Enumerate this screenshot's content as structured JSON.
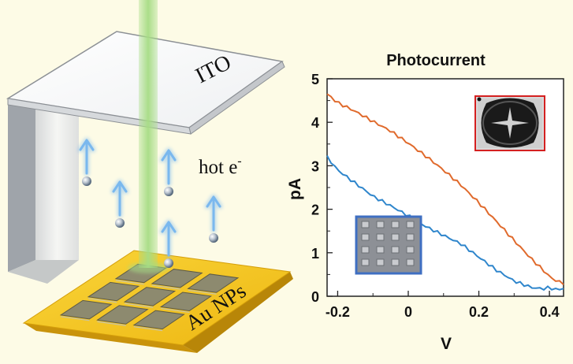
{
  "colors": {
    "background": "#fdfbe6",
    "gold": "#f3c21a",
    "laser": "#a6dc84",
    "electron_arrow": "#7ab8ee",
    "series_top": "#e06a2c",
    "series_bottom": "#2f86cc",
    "inset_top_border": "#d42020",
    "inset_bottom_border": "#3f6fc2"
  },
  "icons": {
    "electron": "sphere-glyph",
    "electron_arrow": "up-arrow-glyph"
  },
  "schematic": {
    "top_electrode_label": "ITO",
    "carrier_label": "hot e",
    "carrier_superscript": "-",
    "substrate_label": "Au NPs"
  },
  "chart_data": {
    "type": "line",
    "title": "Photocurrent",
    "xlabel": "V",
    "ylabel": "pA",
    "xlim": [
      -0.23,
      0.44
    ],
    "ylim": [
      0,
      5
    ],
    "xticks": [
      -0.2,
      0,
      0.2,
      0.4
    ],
    "xtick_labels": [
      "-0.2",
      "0",
      "0.2",
      "0.4"
    ],
    "yticks": [
      0,
      1,
      2,
      3,
      4,
      5
    ],
    "ytick_labels": [
      "0",
      "1",
      "2",
      "3",
      "4",
      "5"
    ],
    "grid": false,
    "legend": "none",
    "series": [
      {
        "color": "#e06a2c",
        "x": [
          -0.23,
          -0.2,
          -0.15,
          -0.1,
          -0.05,
          0,
          0.05,
          0.1,
          0.15,
          0.2,
          0.25,
          0.3,
          0.35,
          0.38,
          0.4,
          0.42,
          0.44
        ],
        "y": [
          4.65,
          4.45,
          4.25,
          4.02,
          3.8,
          3.52,
          3.22,
          2.9,
          2.55,
          2.15,
          1.72,
          1.28,
          0.85,
          0.62,
          0.45,
          0.35,
          0.3
        ]
      },
      {
        "color": "#2f86cc",
        "x": [
          -0.23,
          -0.2,
          -0.15,
          -0.1,
          -0.05,
          0,
          0.05,
          0.1,
          0.15,
          0.2,
          0.25,
          0.3,
          0.35,
          0.38,
          0.4,
          0.42,
          0.44
        ],
        "y": [
          3.2,
          2.9,
          2.6,
          2.3,
          2.08,
          1.85,
          1.6,
          1.4,
          1.2,
          0.9,
          0.6,
          0.35,
          0.2,
          0.17,
          0.2,
          0.15,
          0.18
        ]
      }
    ]
  }
}
